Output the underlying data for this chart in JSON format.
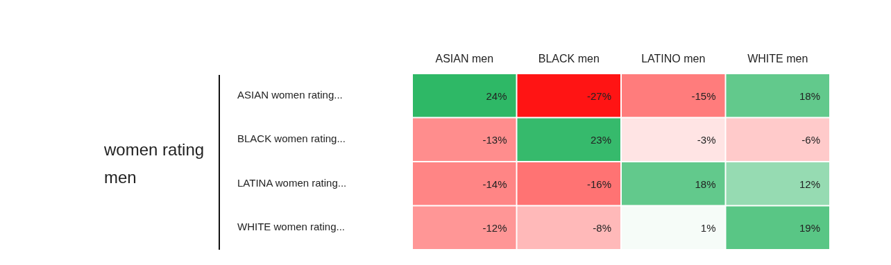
{
  "chart_data": {
    "type": "heatmap",
    "ylabel": "women rating men",
    "categories": [
      "ASIAN men",
      "BLACK men",
      "LATINO men",
      "WHITE men"
    ],
    "y_categories": [
      "ASIAN women rating...",
      "BLACK women rating...",
      "LATINA women rating...",
      "WHITE women rating..."
    ],
    "cells": [
      [
        24,
        -27,
        -15,
        18
      ],
      [
        -13,
        23,
        -3,
        -6
      ],
      [
        -14,
        -16,
        18,
        12
      ],
      [
        -12,
        -8,
        1,
        19
      ]
    ],
    "cell_labels": [
      [
        "24%",
        "-27%",
        "-15%",
        "18%"
      ],
      [
        "-13%",
        "23%",
        "-3%",
        "-6%"
      ],
      [
        "-14%",
        "-16%",
        "18%",
        "12%"
      ],
      [
        "-12%",
        "-8%",
        "1%",
        "19%"
      ]
    ]
  }
}
